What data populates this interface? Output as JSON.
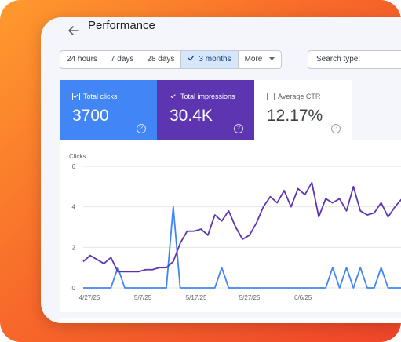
{
  "header": {
    "title": "Performance"
  },
  "filters": {
    "ranges": [
      "24 hours",
      "7 days",
      "28 days",
      "3 months",
      "More"
    ],
    "active_range": "3 months",
    "search_type_label": "Search type:"
  },
  "metrics": {
    "clicks": {
      "label": "Total clicks",
      "value": "3700",
      "checked": true
    },
    "impressions": {
      "label": "Total impressions",
      "value": "30.4K",
      "checked": true
    },
    "ctr": {
      "label": "Average CTR",
      "value": "12.17%",
      "checked": false
    }
  },
  "colors": {
    "clicks": "#4285f4",
    "impressions": "#5e35b1",
    "frame_gradient": [
      "#ff9a2e",
      "#f0452a"
    ]
  },
  "chart_data": {
    "type": "line",
    "ylabel": "Clicks",
    "ylim": [
      0,
      6
    ],
    "yticks": [
      "0",
      "2",
      "4",
      "6"
    ],
    "x_tick_labels": [
      "4/27/25",
      "5/7/25",
      "5/17/25",
      "5/27/25",
      "6/6/25"
    ],
    "series": [
      {
        "color": "#4285f4",
        "x": [
          0,
          1,
          2,
          3,
          4,
          5,
          6,
          7,
          8,
          9,
          10,
          11,
          12,
          13,
          14,
          15,
          16,
          17,
          18,
          19,
          20,
          21,
          22,
          23,
          24,
          25,
          26,
          27,
          28,
          29,
          30,
          31,
          32,
          33,
          34,
          35,
          36,
          37,
          38,
          39,
          40,
          41,
          42,
          43,
          44,
          45,
          46,
          47
        ],
        "values": [
          0,
          0,
          0,
          0,
          0,
          1,
          0,
          0,
          0,
          0,
          0,
          0,
          0,
          4,
          0,
          0,
          0,
          0,
          0,
          0,
          1,
          0,
          0,
          0,
          0,
          0,
          0,
          0,
          0,
          0,
          0,
          0,
          0,
          0,
          0,
          0,
          1,
          0,
          1,
          0,
          1,
          0,
          0,
          1,
          0,
          0,
          0,
          0
        ]
      },
      {
        "color": "#5e35b1",
        "x": [
          0,
          1,
          2,
          3,
          4,
          5,
          6,
          7,
          8,
          9,
          10,
          11,
          12,
          13,
          14,
          15,
          16,
          17,
          18,
          19,
          20,
          21,
          22,
          23,
          24,
          25,
          26,
          27,
          28,
          29,
          30,
          31,
          32,
          33,
          34,
          35,
          36,
          37,
          38,
          39,
          40,
          41,
          42,
          43,
          44,
          45,
          46,
          47
        ],
        "values": [
          1.3,
          1.6,
          1.4,
          1.2,
          1.5,
          0.8,
          0.8,
          0.8,
          0.8,
          0.9,
          0.9,
          1.0,
          1.0,
          1.3,
          2.2,
          2.8,
          2.8,
          2.9,
          2.6,
          3.6,
          3.3,
          3.8,
          3.0,
          2.4,
          2.6,
          3.2,
          4.0,
          4.5,
          4.2,
          4.8,
          4.0,
          4.9,
          4.6,
          5.2,
          3.5,
          4.4,
          4.2,
          4.4,
          3.8,
          5.0,
          3.8,
          3.6,
          3.7,
          4.2,
          3.5,
          4.0,
          4.4,
          4.0
        ]
      }
    ]
  }
}
